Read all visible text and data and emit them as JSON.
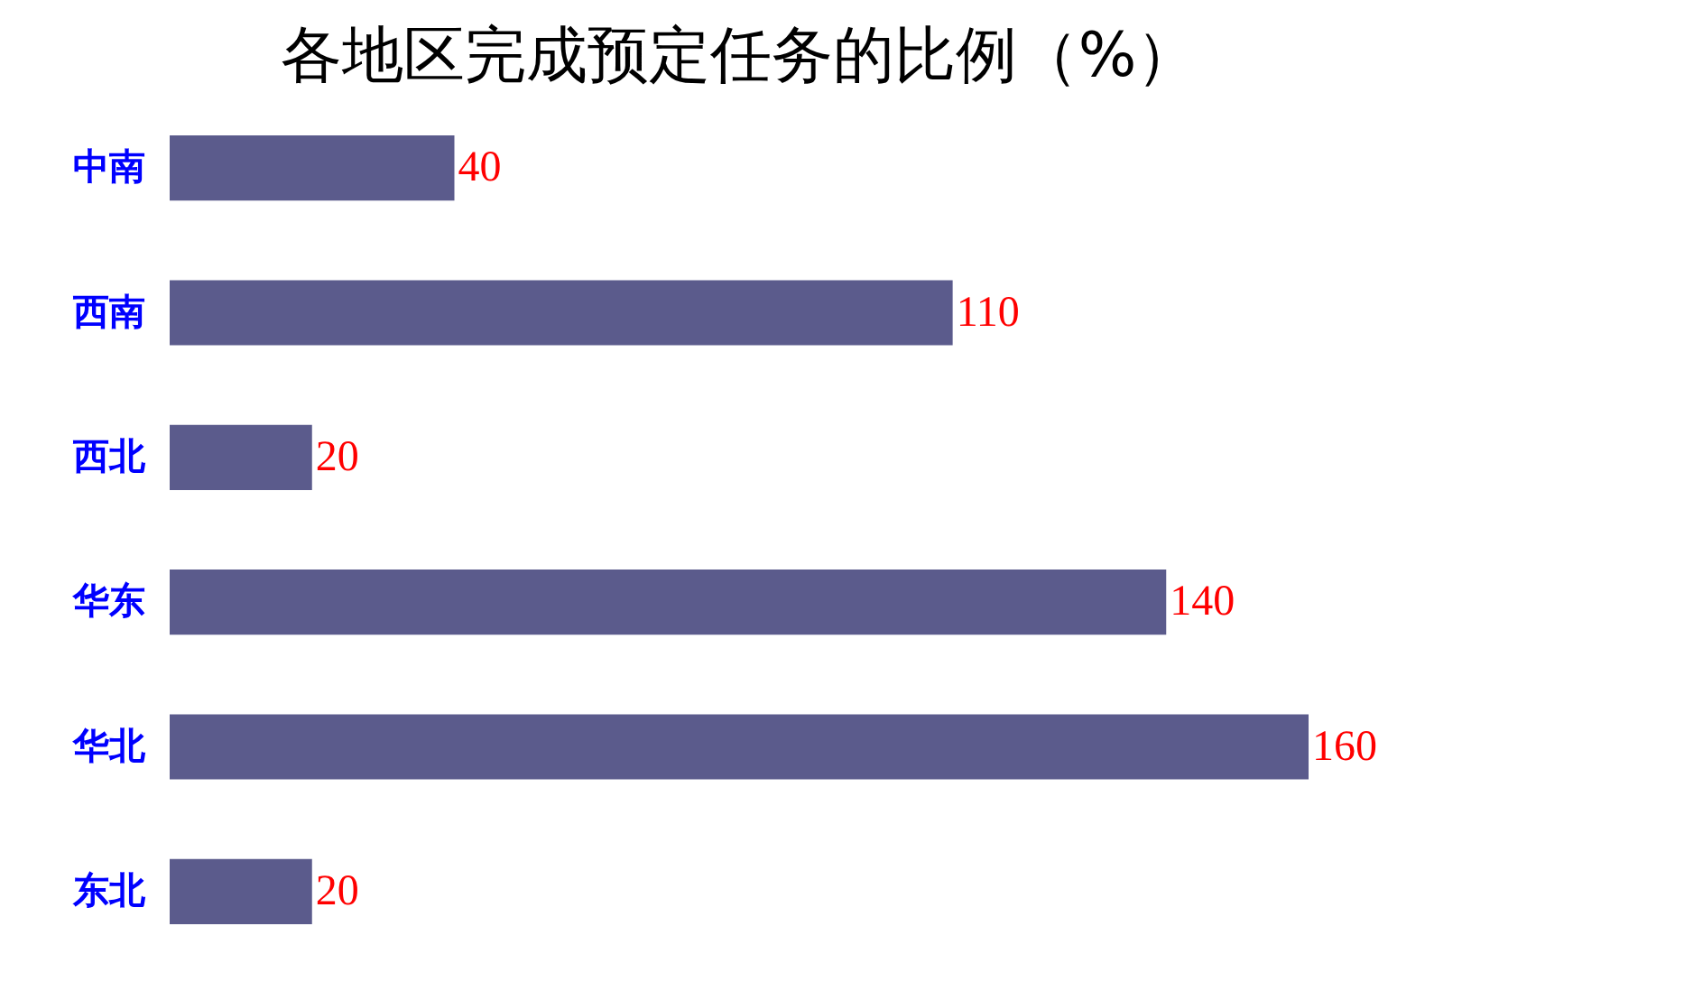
{
  "chart_data": {
    "type": "bar",
    "title": "各地区完成预定任务的比例（%）",
    "orientation": "horizontal",
    "categories": [
      "中南",
      "西南",
      "西北",
      "华东",
      "华北",
      "东北"
    ],
    "values": [
      40,
      110,
      20,
      140,
      160,
      20
    ],
    "color": "#5b5b8c",
    "data_labels": true
  }
}
